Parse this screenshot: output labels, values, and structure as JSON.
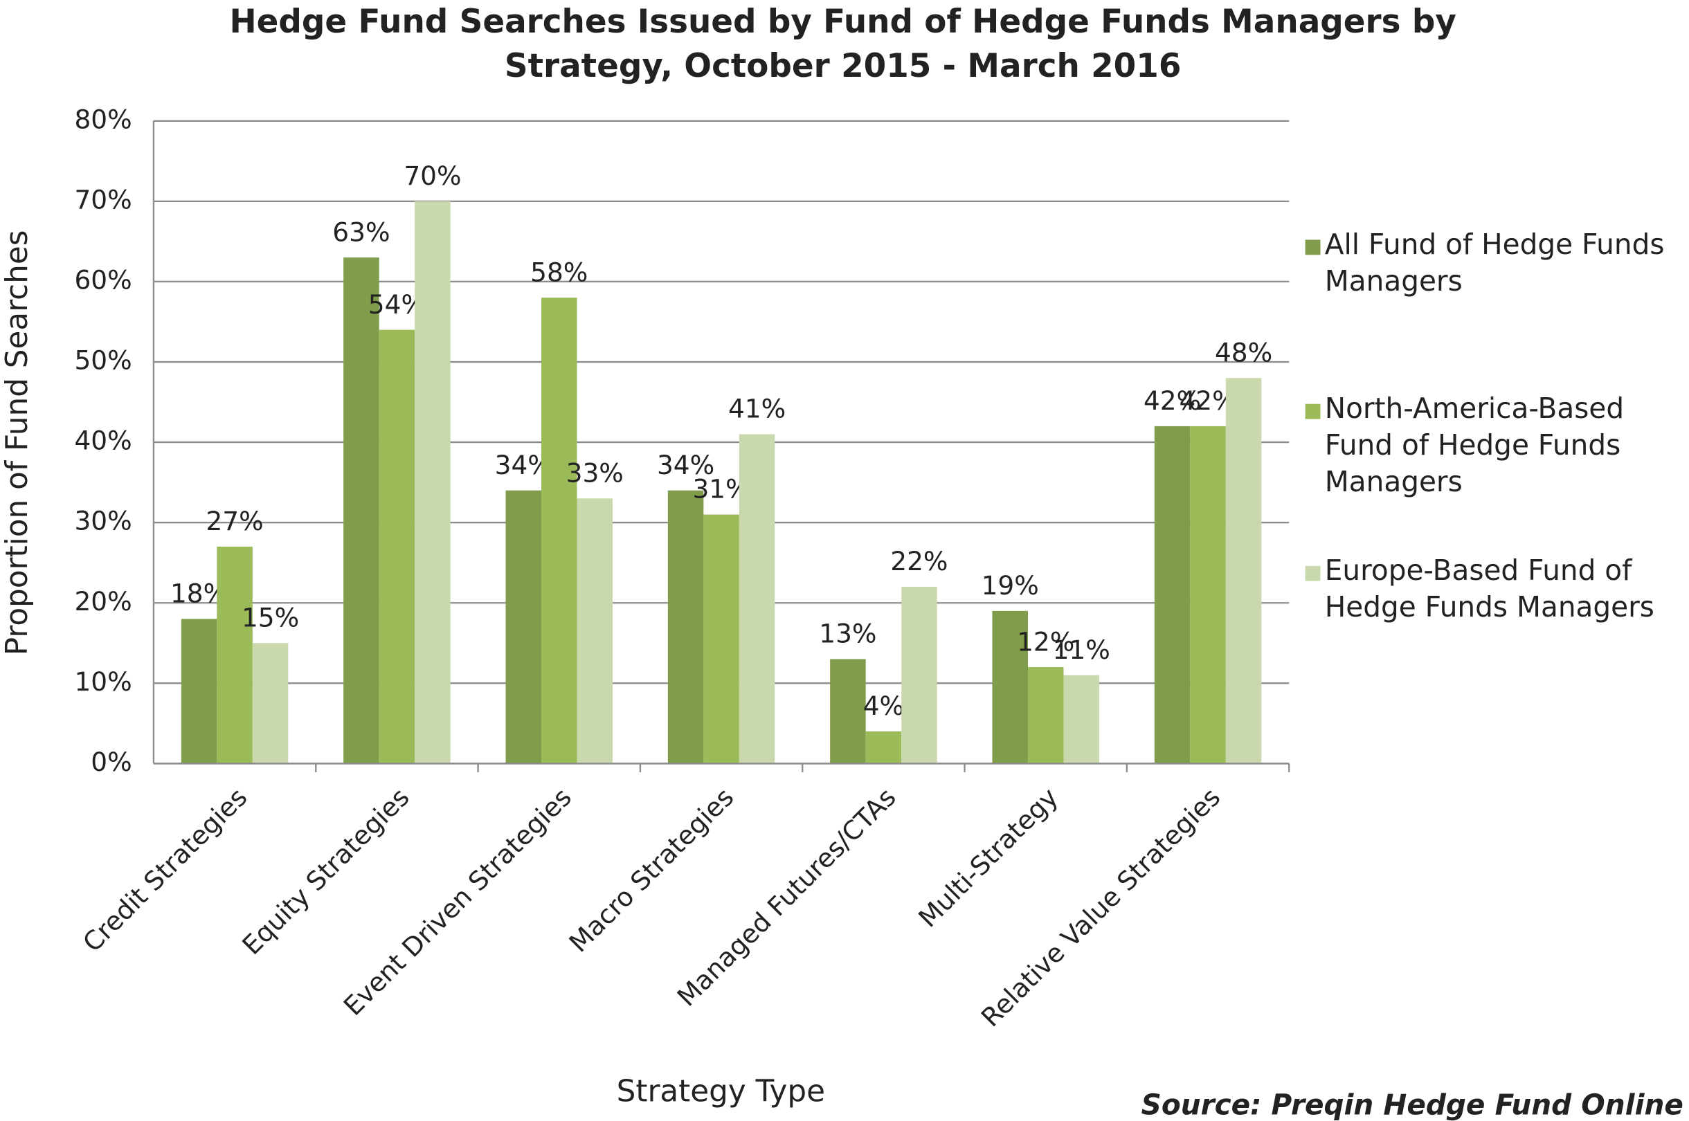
{
  "chart_data": {
    "type": "bar",
    "title": "Hedge Fund Searches Issued by Fund of Hedge Funds Managers by Strategy, October 2015 - March 2016",
    "x_label": "Strategy Type",
    "y_label": "Proportion of Fund Searches",
    "source": "Source: Preqin Hedge Fund Online",
    "categories": [
      "Credit Strategies",
      "Equity Strategies",
      "Event Driven Strategies",
      "Macro Strategies",
      "Managed Futures/CTAs",
      "Multi-Strategy",
      "Relative Value Strategies"
    ],
    "series": [
      {
        "name": "All Fund of Hedge Funds Managers",
        "color": "#7f9d4a",
        "values": [
          18,
          63,
          34,
          34,
          13,
          19,
          42
        ],
        "value_labels": [
          "18%",
          "63%",
          "34%",
          "34%",
          "13%",
          "19%",
          "42%"
        ]
      },
      {
        "name": "North-America-Based Fund of Hedge Funds Managers",
        "color": "#9bbb59",
        "values": [
          27,
          54,
          58,
          31,
          4,
          12,
          42
        ],
        "value_labels": [
          "27%",
          "54%",
          "58%",
          "31%",
          "4%",
          "12%",
          "42%"
        ]
      },
      {
        "name": "Europe-Based Fund of Hedge Funds Managers",
        "color": "#c9d9ad",
        "values": [
          15,
          70,
          33,
          41,
          22,
          11,
          48
        ],
        "value_labels": [
          "15%",
          "70%",
          "33%",
          "41%",
          "22%",
          "11%",
          "48%"
        ]
      }
    ],
    "ylim": [
      0,
      80
    ],
    "yticks": [
      {
        "value": 0,
        "label": "0%"
      },
      {
        "value": 10,
        "label": "10%"
      },
      {
        "value": 20,
        "label": "20%"
      },
      {
        "value": 30,
        "label": "30%"
      },
      {
        "value": 40,
        "label": "40%"
      },
      {
        "value": 50,
        "label": "50%"
      },
      {
        "value": 60,
        "label": "60%"
      },
      {
        "value": 70,
        "label": "70%"
      },
      {
        "value": 80,
        "label": "80%"
      }
    ],
    "grid": true,
    "legend": "right"
  }
}
